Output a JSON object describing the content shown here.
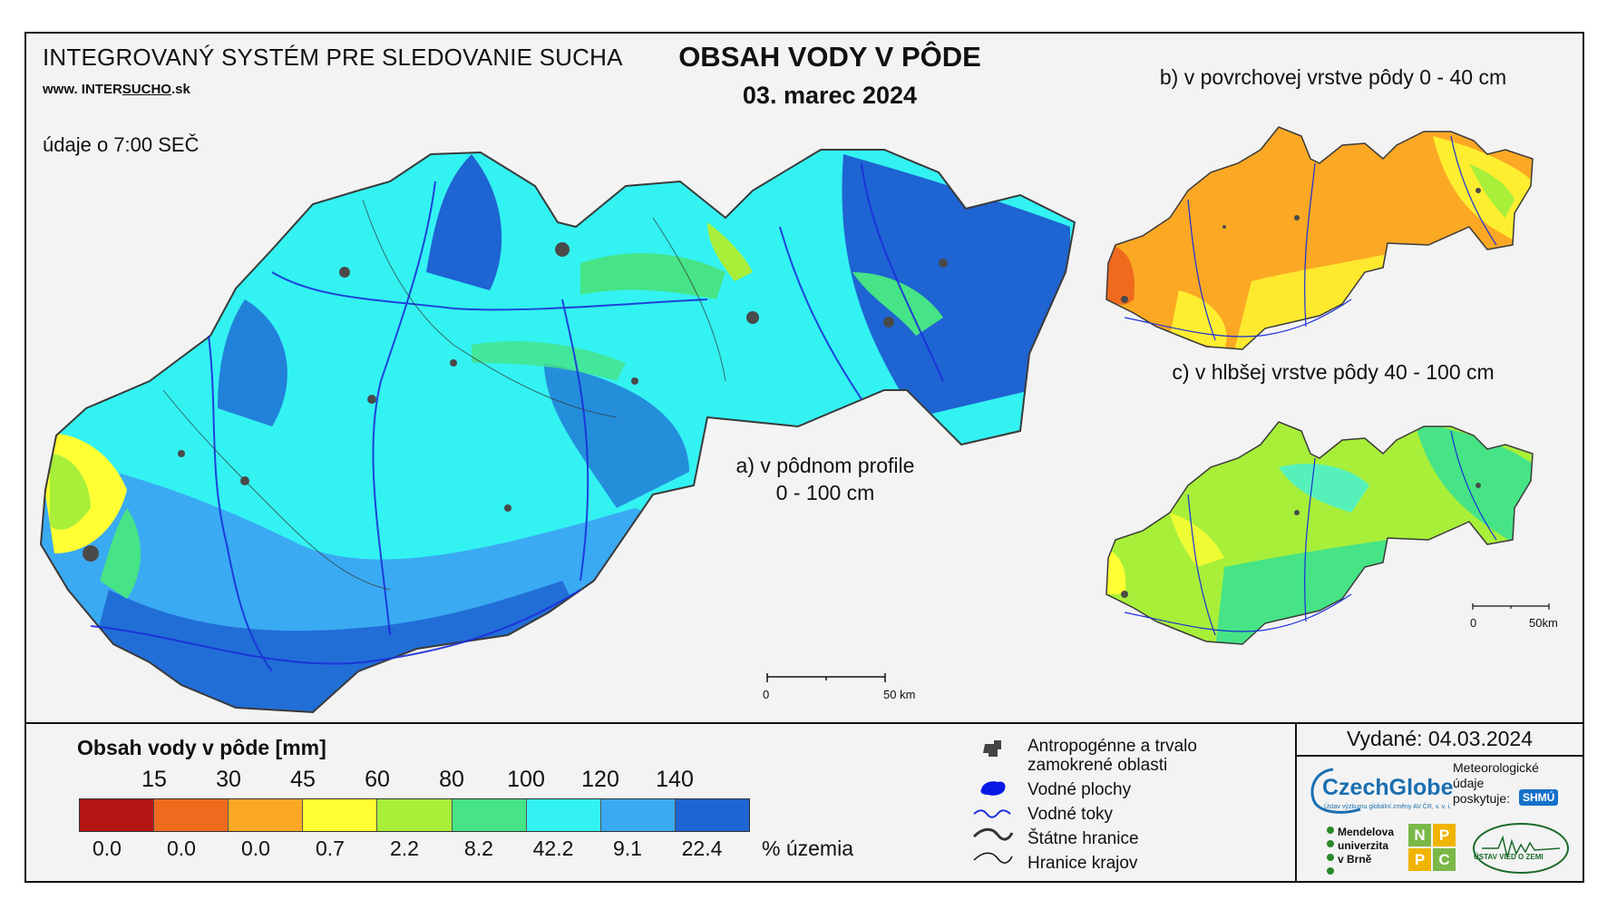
{
  "header": {
    "system_title": "INTEGROVANÝ SYSTÉM PRE SLEDOVANIE SUCHA",
    "website_prefix": "www. INTER",
    "website_underlined": "SUCHO",
    "website_suffix": ".sk",
    "time_note": "údaje o 7:00 SEČ",
    "main_title": "OBSAH VODY V PÔDE",
    "date": "03. marec 2024"
  },
  "maps": {
    "a_caption_line1": "a) v pôdnom profile",
    "a_caption_line2": "0 - 100 cm",
    "b_caption": "b) v povrchovej vrstve pôdy 0 - 40 cm",
    "c_caption": "c) v hlbšej vrstve pôdy 40 - 100 cm",
    "scale_main_start": "0",
    "scale_main_end": "50 km",
    "scale_small_start": "0",
    "scale_small_end": "50km"
  },
  "legend": {
    "title": "Obsah vody v pôde  [mm]",
    "thresholds": [
      "15",
      "30",
      "45",
      "60",
      "80",
      "100",
      "120",
      "140"
    ],
    "colors": [
      "#b31414",
      "#f06a1e",
      "#fba824",
      "#ffff33",
      "#a8ef3a",
      "#46e486",
      "#33f2f2",
      "#3aaaf2",
      "#1e64d2"
    ],
    "percentages": [
      "0.0",
      "0.0",
      "0.0",
      "0.7",
      "2.2",
      "8.2",
      "42.2",
      "9.1",
      "22.4"
    ],
    "percent_label": "% územia",
    "items": [
      {
        "icon": "anthropogenic-area-icon",
        "label_line1": "Antropogénne a trvalo",
        "label_line2": "zamokrené oblasti"
      },
      {
        "icon": "water-body-icon",
        "label_line1": "Vodné plochy"
      },
      {
        "icon": "river-icon",
        "label_line1": "Vodné toky"
      },
      {
        "icon": "state-border-icon",
        "label_line1": "Štátne hranice"
      },
      {
        "icon": "region-border-icon",
        "label_line1": "Hranice krajov"
      }
    ]
  },
  "issued": "Vydané: 04.03.2024",
  "logos": {
    "czechglobe": "CzechGlobe",
    "czechglobe_sub": "Ústav výzkumu globální změny AV ČR, v. v. i.",
    "met_line1": "Meteorologické",
    "met_line2": "údaje",
    "met_line3": "poskytuje:",
    "shmu": "SHMÚ",
    "mendel_line1": "Mendelova",
    "mendel_line2": "univerzita",
    "mendel_line3": "v Brně",
    "nppc": [
      "N",
      "P",
      "P",
      "C"
    ],
    "uvz": "ÚSTAV VIED O ZEMI"
  },
  "map_colors": {
    "outline": "#3a3a3a",
    "rivers": "#1b2fd8",
    "urban": "#4a4a4a"
  }
}
